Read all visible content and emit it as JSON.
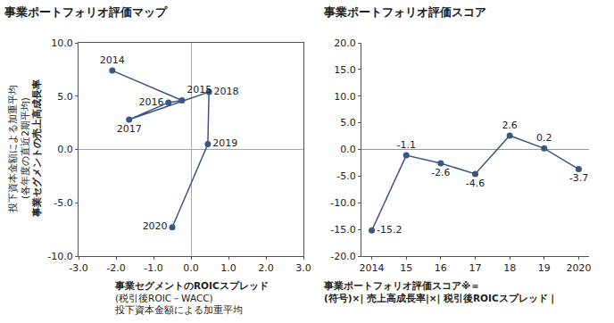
{
  "chart_data": [
    {
      "type": "line",
      "title": "事業ポートフォリオ評価マップ",
      "x": [
        -2.1,
        -0.24,
        -0.6,
        -1.65,
        0.48,
        0.45,
        -0.5
      ],
      "values": [
        7.4,
        4.6,
        4.4,
        2.8,
        5.4,
        0.5,
        -7.3
      ],
      "point_labels": [
        "2014",
        "2015",
        "2016",
        "2017",
        "2018",
        "2019",
        "2020"
      ],
      "xlabel": [
        "事業セグメントのROICスプレッド",
        "(税引後ROIC－WACC)",
        "投下資本金額による加重平均"
      ],
      "ylabel": [
        "事業セグメントの売上高成長率",
        "(各年度の直近2期平均)",
        "投下資本金額による加重平均"
      ],
      "xlim": [
        -3,
        3
      ],
      "xticks": [
        {
          "value": -3,
          "label": "-3.0"
        },
        {
          "value": -2,
          "label": "-2.0"
        },
        {
          "value": -1,
          "label": "-1.0"
        },
        {
          "value": 0,
          "label": "0.0"
        },
        {
          "value": 1,
          "label": "1.0"
        },
        {
          "value": 2,
          "label": "2.0"
        },
        {
          "value": 3,
          "label": "3.0"
        }
      ],
      "ylim": [
        -10,
        10
      ],
      "yticks": [
        {
          "value": -10,
          "label": "-10.0"
        },
        {
          "value": -5,
          "label": "-5.0"
        },
        {
          "value": 0,
          "label": "0.0"
        },
        {
          "value": 5,
          "label": "5.0"
        },
        {
          "value": 10,
          "label": "10.0"
        }
      ],
      "color": "#3b5683",
      "marker": "circle",
      "line_style": "solid",
      "grid": false
    },
    {
      "type": "line",
      "title": "事業ポートフォリオ評価スコア",
      "categories": [
        "2014",
        "15",
        "16",
        "17",
        "18",
        "19",
        "2020"
      ],
      "values": [
        -15.2,
        -1.1,
        -2.6,
        -4.6,
        2.6,
        0.2,
        -3.7
      ],
      "data_labels": true,
      "xlabel": [
        "事業ポートフォリオ評価スコア※＝",
        "(符号)×| 売上高成長率|×| 税引後ROICスプレッド |"
      ],
      "ylim": [
        -20,
        20
      ],
      "yticks": [
        {
          "value": -20,
          "label": "-20.0"
        },
        {
          "value": -15,
          "label": "-15.0"
        },
        {
          "value": -10,
          "label": "-10.0"
        },
        {
          "value": -5,
          "label": "-5.0"
        },
        {
          "value": 0,
          "label": "0.0"
        },
        {
          "value": 5,
          "label": "5.0"
        },
        {
          "value": 10,
          "label": "10.0"
        },
        {
          "value": 15,
          "label": "15.0"
        },
        {
          "value": 20,
          "label": "20.0"
        }
      ],
      "color": "#3b5683",
      "marker": "circle",
      "line_style": "solid",
      "grid": false
    }
  ]
}
